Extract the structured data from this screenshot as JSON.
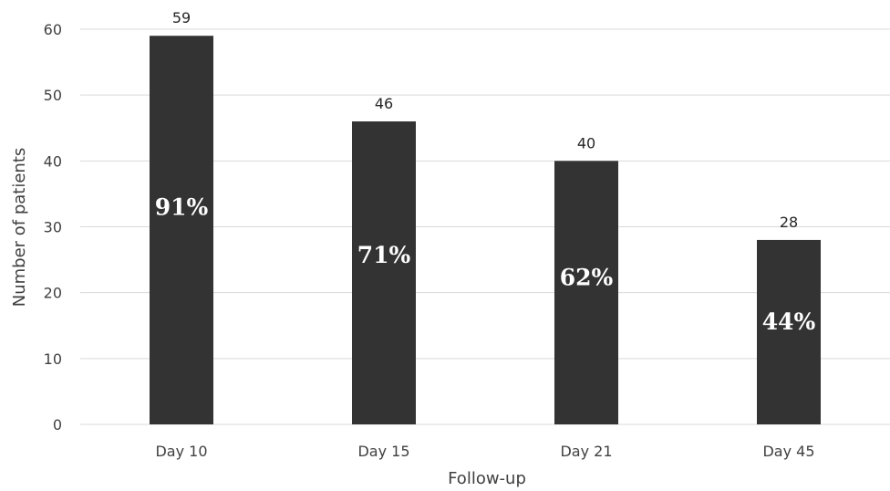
{
  "chart_data": {
    "type": "bar",
    "title": "",
    "xlabel": "Follow-up",
    "ylabel": "Number of patients",
    "ylim": [
      0,
      60
    ],
    "yticks": [
      0,
      10,
      20,
      30,
      40,
      50,
      60
    ],
    "categories": [
      "Day 10",
      "Day 15",
      "Day 21",
      "Day 45"
    ],
    "values": [
      59,
      46,
      40,
      28
    ],
    "value_labels": [
      "59",
      "46",
      "40",
      "28"
    ],
    "percent_labels": [
      "91%",
      "71%",
      "62%",
      "44%"
    ],
    "bar_color": "#333333",
    "grid": true,
    "legend": "none"
  }
}
